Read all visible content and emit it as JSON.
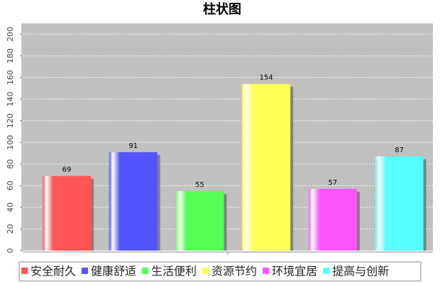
{
  "chart_data": {
    "type": "bar",
    "title": "柱状图",
    "categories": [
      null
    ],
    "series": [
      {
        "name": "安全耐久",
        "color": "#ff5555",
        "values": [
          69
        ]
      },
      {
        "name": "健康舒适",
        "color": "#5555ff",
        "values": [
          91
        ]
      },
      {
        "name": "生活便利",
        "color": "#55ff55",
        "values": [
          55
        ]
      },
      {
        "name": "资源节约",
        "color": "#ffff55",
        "values": [
          154
        ]
      },
      {
        "name": "环境宜居",
        "color": "#ff55ff",
        "values": [
          57
        ]
      },
      {
        "name": "提高与创新",
        "color": "#55ffff",
        "values": [
          87
        ]
      }
    ],
    "ylim": [
      0,
      210
    ],
    "yticks": [
      0,
      20,
      40,
      60,
      80,
      100,
      120,
      140,
      160,
      180,
      200
    ],
    "grid": true,
    "legend": "bottom"
  }
}
